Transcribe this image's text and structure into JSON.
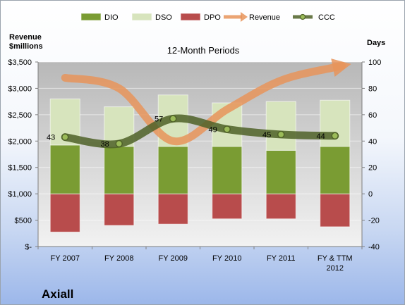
{
  "company": "Axiall",
  "chart_data": {
    "type": "bar",
    "title": "12-Month Periods",
    "ylabel_left": "Revenue\n$millions",
    "ylabel_right": "Days",
    "categories": [
      "FY 2007",
      "FY 2008",
      "FY 2009",
      "FY 2010",
      "FY 2011",
      "FY & TTM\n2012"
    ],
    "left_axis": {
      "min": 0,
      "max": 3500,
      "step": 500,
      "tick_labels": [
        "$-",
        "$500",
        "$1,000",
        "$1,500",
        "$2,000",
        "$2,500",
        "$3,000",
        "$3,500"
      ]
    },
    "right_axis": {
      "min": -40,
      "max": 100,
      "step": 20,
      "tick_labels": [
        "-40",
        "-20",
        "0",
        "20",
        "40",
        "60",
        "80",
        "100"
      ]
    },
    "series": [
      {
        "name": "DIO",
        "axis": "right",
        "values": [
          37,
          36,
          36,
          36,
          33,
          36
        ],
        "color": "#7a9c33"
      },
      {
        "name": "DSO",
        "axis": "right",
        "values": [
          35,
          30,
          39,
          33,
          37,
          35
        ],
        "color": "#d7e4bd"
      },
      {
        "name": "DPO",
        "axis": "right",
        "values": [
          -29,
          -24,
          -23,
          -19,
          -19,
          -25
        ],
        "color": "#b84c4c"
      },
      {
        "name": "Revenue",
        "axis": "left",
        "values": [
          3200,
          3000,
          2000,
          2600,
          3150,
          3400
        ],
        "color": "#e8945a"
      },
      {
        "name": "CCC",
        "axis": "right",
        "values": [
          43,
          38,
          57,
          49,
          45,
          44
        ],
        "color": "#4f6228"
      }
    ],
    "data_labels": [
      "43",
      "38",
      "57",
      "49",
      "45",
      "44"
    ],
    "grid": true,
    "legend": "top"
  }
}
